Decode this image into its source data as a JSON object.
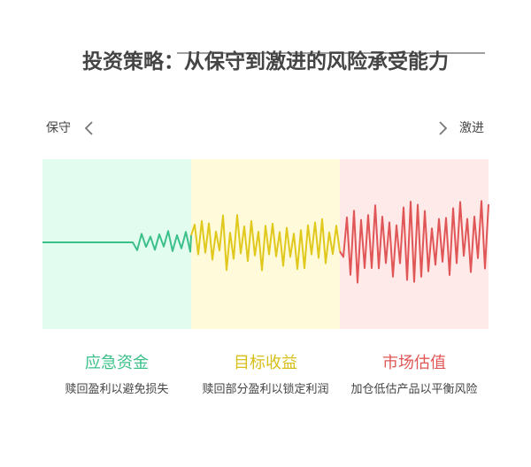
{
  "title": "投资策略：从保守到激进的风险承受能力",
  "scale": {
    "left": "保守",
    "right": "激进"
  },
  "sections": [
    {
      "title": "应急资金",
      "description": "赎回盈利以避免损失"
    },
    {
      "title": "目标收益",
      "description": "赎回部分盈利以锁定利润"
    },
    {
      "title": "市场估值",
      "description": "加仓低估产品以平衡风险"
    }
  ]
}
